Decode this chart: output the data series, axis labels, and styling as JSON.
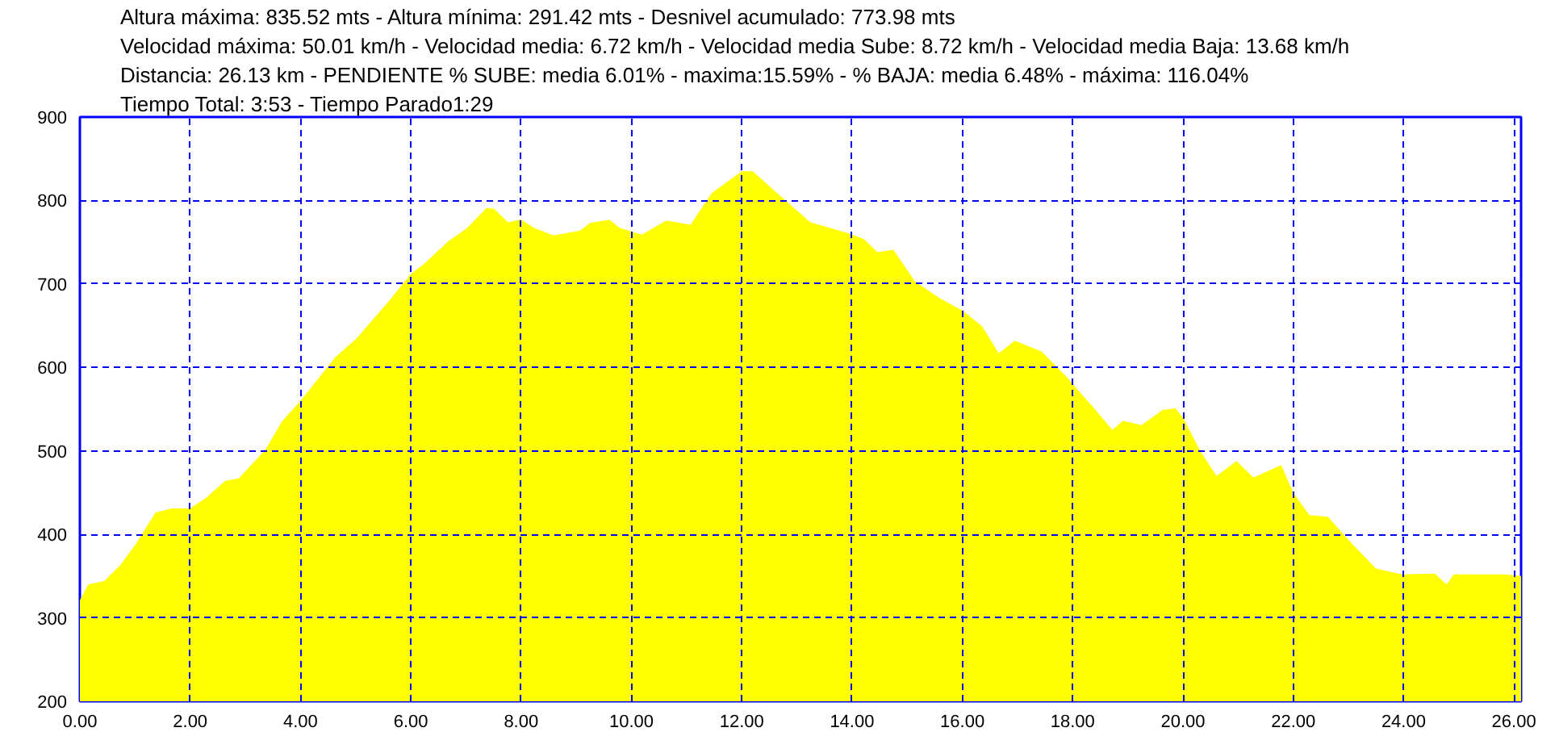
{
  "chart_data": {
    "type": "area",
    "title": "Altura máxima: 835.52 mts - Altura mínima: 291.42 mts - Desnivel acumulado: 773.98 mts",
    "annotations": [
      "Velocidad máxima: 50.01 km/h - Velocidad media: 6.72 km/h - Velocidad media Sube: 8.72 km/h - Velocidad media Baja: 13.68 km/h",
      "Distancia: 26.13 km - PENDIENTE  % SUBE: media 6.01% - maxima:15.59%  - % BAJA: media 6.48% - máxima: 116.04%",
      "Tiempo Total: 3:53 - Tiempo Parado1:29"
    ],
    "x": [
      0,
      0.15,
      0.44,
      0.73,
      1.02,
      1.37,
      1.66,
      2.0,
      2.29,
      2.63,
      2.88,
      3.37,
      3.66,
      4.0,
      4.63,
      5.02,
      5.61,
      6.0,
      6.24,
      6.68,
      7.02,
      7.37,
      7.51,
      7.76,
      8.0,
      8.24,
      8.59,
      9.07,
      9.25,
      9.6,
      9.79,
      10.19,
      10.63,
      11.07,
      11.46,
      12.0,
      12.2,
      12.74,
      13.24,
      13.92,
      14.21,
      14.46,
      14.75,
      15.14,
      15.59,
      16.03,
      16.36,
      16.66,
      16.95,
      17.44,
      17.93,
      18.0,
      18.39,
      18.72,
      18.91,
      19.25,
      19.63,
      19.86,
      20.0,
      20.32,
      20.61,
      20.97,
      21.28,
      21.78,
      22.0,
      22.29,
      22.63,
      23.02,
      23.5,
      23.97,
      24.57,
      24.78,
      24.91,
      25.83,
      26.13
    ],
    "series": [
      {
        "color": "#ffff00",
        "values": [
          321,
          340,
          344,
          363,
          389,
          426,
          431,
          431,
          444,
          464,
          467,
          502,
          535,
          560,
          612,
          635,
          680,
          712,
          724,
          751,
          767,
          791,
          790,
          774,
          777,
          767,
          758,
          764,
          773,
          777,
          767,
          759,
          776,
          771,
          809,
          835,
          835,
          803,
          774,
          761,
          754,
          738,
          741,
          703,
          683,
          667,
          649,
          617,
          632,
          619,
          586,
          580,
          551,
          525,
          536,
          531,
          549,
          551,
          540,
          499,
          470,
          488,
          468,
          483,
          450,
          423,
          421,
          392,
          359,
          352,
          353,
          340,
          352,
          352,
          350
        ]
      }
    ],
    "xlim": [
      0,
      26.13
    ],
    "ylim": [
      200,
      900
    ],
    "xticks": [
      {
        "value": 0,
        "label": "0.00"
      },
      {
        "value": 2,
        "label": "2.00"
      },
      {
        "value": 4,
        "label": "4.00"
      },
      {
        "value": 6,
        "label": "6.00"
      },
      {
        "value": 8,
        "label": "8.00"
      },
      {
        "value": 10,
        "label": "10.00"
      },
      {
        "value": 12,
        "label": "12.00"
      },
      {
        "value": 14,
        "label": "14.00"
      },
      {
        "value": 16,
        "label": "16.00"
      },
      {
        "value": 18,
        "label": "18.00"
      },
      {
        "value": 20,
        "label": "20.00"
      },
      {
        "value": 22,
        "label": "22.00"
      },
      {
        "value": 24,
        "label": "24.00"
      },
      {
        "value": 26,
        "label": "26.00"
      }
    ],
    "yticks": [
      200,
      300,
      400,
      500,
      600,
      700,
      800,
      900
    ],
    "grid": true
  }
}
